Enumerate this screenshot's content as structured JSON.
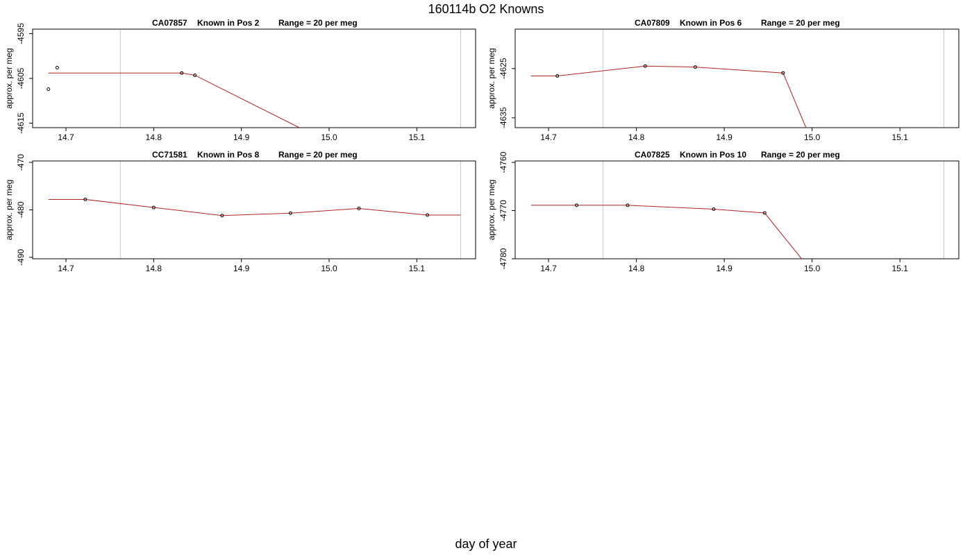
{
  "title": "160114b   O2 Knowns",
  "xlabel": "day of year",
  "colors": {
    "line": "#b22222",
    "grid": "#c8c8c8",
    "axis": "#000000"
  },
  "chart_data": [
    {
      "type": "line",
      "title_parts": [
        "CA07857",
        "Known in Pos 2",
        "Range = 20 per meg"
      ],
      "ylabel": "approx. per meg",
      "xlim": [
        14.662,
        15.167
      ],
      "ylim": [
        -4616,
        -4594
      ],
      "xticks": [
        "14.7",
        "14.8",
        "14.9",
        "15.0",
        "15.1"
      ],
      "yticks": [
        "-4595",
        "-4605",
        "-4615"
      ],
      "vlines": [
        14.762,
        15.15
      ],
      "grid": false,
      "points": {
        "x": [
          14.68,
          14.69,
          14.832,
          14.847
        ],
        "y": [
          -4607.4,
          -4602.6,
          -4603.8,
          -4604.3
        ]
      },
      "fit": {
        "x": [
          14.68,
          14.832,
          14.847,
          14.966
        ],
        "y": [
          -4603.8,
          -4603.8,
          -4604.3,
          -4616
        ]
      }
    },
    {
      "type": "line",
      "title_parts": [
        "CA07809",
        "Known in Pos 6",
        "Range = 20 per meg"
      ],
      "ylabel": "approx. per meg",
      "xlim": [
        14.662,
        15.167
      ],
      "ylim": [
        -4637,
        -4617
      ],
      "xticks": [
        "14.7",
        "14.8",
        "14.9",
        "15.0",
        "15.1"
      ],
      "yticks": [
        "-4625",
        "-4635"
      ],
      "vlines": [
        14.762,
        15.15
      ],
      "grid": false,
      "points": {
        "x": [
          14.71,
          14.81,
          14.867,
          14.967
        ],
        "y": [
          -4626.5,
          -4624.5,
          -4624.7,
          -4625.9
        ]
      },
      "fit": {
        "x": [
          14.68,
          14.71,
          14.81,
          14.867,
          14.967,
          14.993
        ],
        "y": [
          -4626.5,
          -4626.5,
          -4624.5,
          -4624.7,
          -4625.9,
          -4637
        ]
      }
    },
    {
      "type": "line",
      "title_parts": [
        "CC71581",
        "Known in Pos 8",
        "Range = 20 per meg"
      ],
      "ylabel": "approx. per meg",
      "xlim": [
        14.662,
        15.167
      ],
      "ylim": [
        -490.3,
        -469.7
      ],
      "xticks": [
        "14.7",
        "14.8",
        "14.9",
        "15.0",
        "15.1"
      ],
      "yticks": [
        "-470",
        "-480",
        "-490"
      ],
      "vlines": [
        14.762,
        15.15
      ],
      "grid": false,
      "points": {
        "x": [
          14.722,
          14.8,
          14.878,
          14.956,
          15.034,
          15.112
        ],
        "y": [
          -477.8,
          -479.5,
          -481.2,
          -480.7,
          -479.7,
          -481.1
        ]
      },
      "fit": {
        "x": [
          14.68,
          14.722,
          14.8,
          14.878,
          14.956,
          15.034,
          15.112,
          15.15
        ],
        "y": [
          -477.8,
          -477.8,
          -479.5,
          -481.2,
          -480.7,
          -479.7,
          -481.1,
          -481.1
        ]
      }
    },
    {
      "type": "line",
      "title_parts": [
        "CA07825",
        "Known in Pos 10",
        "Range = 20 per meg"
      ],
      "ylabel": "approx. per meg",
      "xlim": [
        14.662,
        15.167
      ],
      "ylim": [
        -4780,
        -4759.7
      ],
      "xticks": [
        "14.7",
        "14.8",
        "14.9",
        "15.0",
        "15.1"
      ],
      "yticks": [
        "-4760",
        "-4770",
        "-4780"
      ],
      "vlines": [
        14.762,
        15.15
      ],
      "grid": false,
      "points": {
        "x": [
          14.732,
          14.79,
          14.888,
          14.946
        ],
        "y": [
          -4768.9,
          -4768.9,
          -4769.7,
          -4770.5
        ]
      },
      "fit": {
        "x": [
          14.68,
          14.732,
          14.79,
          14.888,
          14.946,
          14.988
        ],
        "y": [
          -4768.9,
          -4768.9,
          -4768.9,
          -4769.7,
          -4770.5,
          -4780
        ]
      }
    }
  ]
}
